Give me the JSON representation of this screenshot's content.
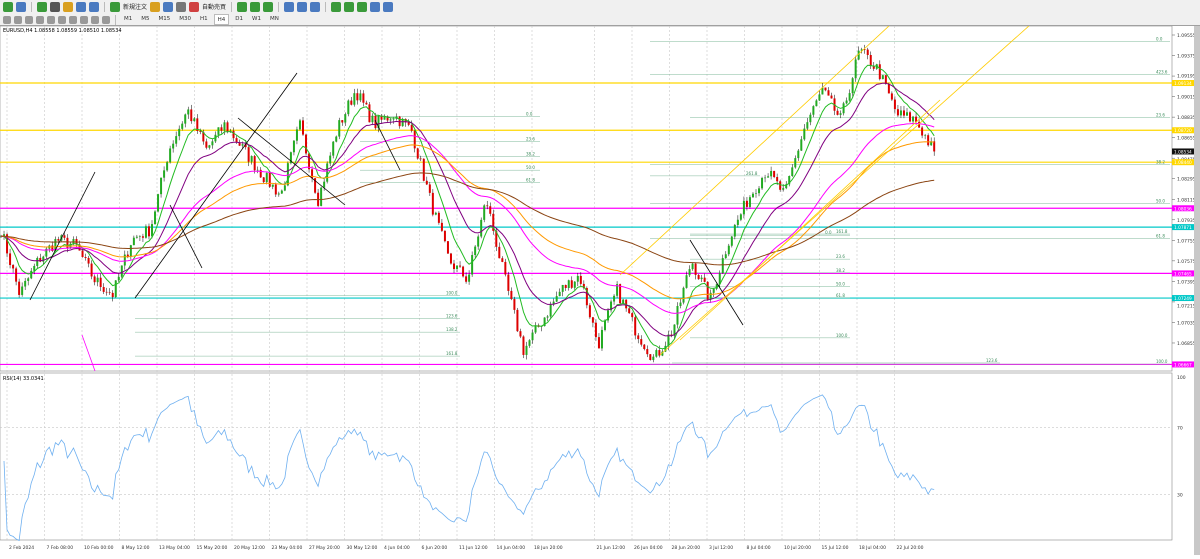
{
  "toolbar": {
    "new_order_label": "新規注文",
    "auto_trade_label": "自動売買",
    "timeframes": [
      "M1",
      "M5",
      "M15",
      "M30",
      "H1",
      "H4",
      "D1",
      "W1",
      "MN"
    ],
    "active_timeframe": "H4",
    "icons": [
      "new-chart-icon",
      "profiles-icon",
      "market-watch-icon",
      "crosshair-icon",
      "navigator-icon",
      "terminal-icon",
      "strategy-tester-icon",
      "new-order-icon",
      "metaeditor-icon",
      "account-icon",
      "signals-icon",
      "auto-trading-icon",
      "bar-chart-icon",
      "candle-chart-icon",
      "line-chart-icon",
      "zoom-in-icon",
      "zoom-out-icon",
      "tile-windows-icon",
      "autoscroll-icon",
      "chart-shift-icon",
      "indicators-icon",
      "periods-icon",
      "templates-icon"
    ],
    "drawing_icons": [
      "cursor-icon",
      "crosshair-icon",
      "vertical-line-icon",
      "horizontal-line-icon",
      "trendline-icon",
      "channel-icon",
      "fibonacci-icon",
      "text-icon",
      "text-label-icon",
      "arrows-icon"
    ]
  },
  "chart": {
    "symbol_header": "EURUSD,H4  1.08558 1.08559 1.08510 1.08534",
    "current_price": "1.08534",
    "price_ticks": [
      "1.09555",
      "1.09375",
      "1.09195",
      "1.09015",
      "1.08835",
      "1.08655",
      "1.08475",
      "1.08295",
      "1.08115",
      "1.07935",
      "1.07755",
      "1.07575",
      "1.07395",
      "1.07215",
      "1.07035",
      "1.06855"
    ],
    "time_ticks": [
      "2 Feb 2024",
      "7 Feb 08:00",
      "10 Feb 00:00",
      "8 May 12:00",
      "13 May 04:00",
      "15 May 20:00",
      "20 May 12:00",
      "23 May 04:00",
      "27 May 20:00",
      "30 May 12:00",
      "4 Jun 04:00",
      "6 Jun 20:00",
      "11 Jun 12:00",
      "14 Jun 04:00",
      "18 Jun 20:00",
      "21 Jun 12:00",
      "26 Jun 04:00",
      "28 Jun 20:00",
      "3 Jul 12:00",
      "8 Jul 04:00",
      "10 Jul 20:00",
      "15 Jul 12:00",
      "18 Jul 04:00",
      "22 Jul 20:00"
    ],
    "horizontal_lines": [
      {
        "price": 1.09134,
        "label": "1.09134",
        "color": "#ffd700"
      },
      {
        "price": 1.0872,
        "label": "1.08720",
        "color": "#ffd700"
      },
      {
        "price": 1.0844,
        "label": "1.08440",
        "color": "#ffd700"
      },
      {
        "price": 1.08036,
        "label": "1.08036",
        "color": "#ff00ff"
      },
      {
        "price": 1.07871,
        "label": "1.07871",
        "color": "#00c8c8"
      },
      {
        "price": 1.07465,
        "label": "1.07465",
        "color": "#ff00ff"
      },
      {
        "price": 1.07249,
        "label": "1.07249",
        "color": "#00c8c8"
      },
      {
        "price": 1.06667,
        "label": "1.06667",
        "color": "#ff00ff"
      }
    ],
    "fib_labels": [
      {
        "text": "0.0",
        "price": 1.095
      },
      {
        "text": "423.6",
        "price": 1.0921
      },
      {
        "text": "23.6",
        "price": 1.0883
      },
      {
        "text": "38.2",
        "price": 1.0842
      },
      {
        "text": "50.0",
        "price": 1.0808
      },
      {
        "text": "61.8",
        "price": 1.0777
      },
      {
        "text": "100.0",
        "price": 1.0667
      },
      {
        "text": "0.0",
        "price": 1.0884
      },
      {
        "text": "23.6",
        "price": 1.0862
      },
      {
        "text": "38.2",
        "price": 1.0849
      },
      {
        "text": "50.0",
        "price": 1.0837
      },
      {
        "text": "61.8",
        "price": 1.0826
      },
      {
        "text": "261.8",
        "price": 1.0832
      },
      {
        "text": "161.8",
        "price": 1.0781
      },
      {
        "text": "0.0",
        "price": 1.078
      },
      {
        "text": "23.6",
        "price": 1.0759
      },
      {
        "text": "38.2",
        "price": 1.0747
      },
      {
        "text": "50.0",
        "price": 1.0735
      },
      {
        "text": "61.8",
        "price": 1.0725
      },
      {
        "text": "100.0",
        "price": 1.069
      },
      {
        "text": "123.6",
        "price": 1.0668
      },
      {
        "text": "100.0",
        "price": 1.0727
      },
      {
        "text": "123.6",
        "price": 1.0707
      },
      {
        "text": "138.2",
        "price": 1.0695
      },
      {
        "text": "161.8",
        "price": 1.0674
      }
    ],
    "close_path": [
      1.0785,
      1.0728,
      1.0758,
      1.0776,
      1.0771,
      1.0741,
      1.0728,
      1.0776,
      1.0785,
      1.0855,
      1.089,
      1.0855,
      1.0877,
      1.0855,
      1.0833,
      1.0815,
      1.0877,
      1.0811,
      1.0872,
      1.0907,
      1.0877,
      1.0886,
      1.0872,
      1.0811,
      1.0758,
      1.0741,
      1.0811,
      1.0741,
      1.0679,
      1.0705,
      1.0732,
      1.0745,
      1.0684,
      1.0732,
      1.0697,
      1.0671,
      1.0697,
      1.0758,
      1.0723,
      1.0776,
      1.0811,
      1.0837,
      1.0815,
      1.0872,
      1.0907,
      1.0881,
      1.0942,
      1.0925,
      1.0886,
      1.0881,
      1.0853
    ],
    "colors": {
      "bull": "#22aa22",
      "bear": "#dd0000",
      "wick": "#000000",
      "ma_fast": "#22bb22",
      "ma_mid": "#800080",
      "ma_slow": "#ff00ff",
      "ma_200": "#ff9900",
      "ma_long": "#8b4513",
      "trend": "#000000",
      "channel": "#ffcc00"
    }
  },
  "rsi": {
    "label": "RSI(14) 33.0341",
    "ticks": [
      "100",
      "70",
      "30"
    ],
    "color": "#6fb0f0"
  }
}
